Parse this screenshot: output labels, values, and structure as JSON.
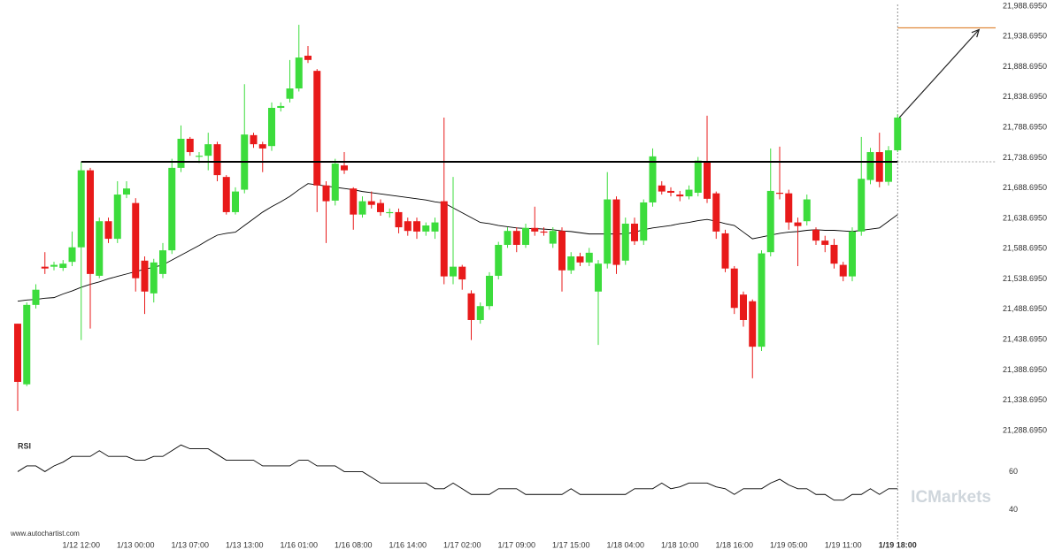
{
  "chart_data": {
    "type": "candlestick",
    "categories": [
      null,
      null,
      null,
      null,
      null,
      null,
      null,
      "1/12 12:00",
      null,
      null,
      null,
      null,
      null,
      "1/13 00:00",
      null,
      null,
      null,
      null,
      null,
      "1/13 07:00",
      null,
      null,
      null,
      null,
      null,
      "1/13 13:00",
      null,
      null,
      null,
      null,
      null,
      "1/16 01:00",
      null,
      null,
      null,
      null,
      null,
      "1/16 08:00",
      null,
      null,
      null,
      null,
      null,
      "1/16 14:00",
      null,
      null,
      null,
      null,
      null,
      "1/17 02:00",
      null,
      null,
      null,
      null,
      null,
      "1/17 09:00",
      null,
      null,
      null,
      null,
      null,
      "1/17 15:00",
      null,
      null,
      null,
      null,
      null,
      "1/18 04:00",
      null,
      null,
      null,
      null,
      null,
      "1/18 10:00",
      null,
      null,
      null,
      null,
      null,
      "1/18 16:00",
      null,
      null,
      null,
      null,
      null,
      "1/19 05:00",
      null,
      null,
      null,
      null,
      null,
      "1/19 11:00",
      null,
      null,
      null,
      null,
      null,
      "1/19 18:00"
    ],
    "open": [
      21465,
      21365,
      21496,
      21559,
      21559,
      21557,
      21567,
      21591,
      21718,
      21544,
      21634,
      21605,
      21678,
      21664,
      21569,
      21515,
      21547,
      21586,
      21722,
      21770,
      21741,
      21742,
      21761,
      21707,
      21649,
      21686,
      21776,
      21761,
      21758,
      21821,
      21836,
      21853,
      21907,
      21882,
      21693,
      21668,
      21726,
      21688,
      21645,
      21667,
      21664,
      21648,
      21649,
      21634,
      21634,
      21617,
      21617,
      21667,
      21543,
      21559,
      21515,
      21471,
      21494,
      21544,
      21595,
      21618,
      21595,
      21623,
      21617,
      21597,
      21618,
      21553,
      21576,
      21566,
      21518,
      21564,
      21670,
      21569,
      21630,
      21602,
      21665,
      21693,
      21684,
      21678,
      21675,
      21681,
      21732,
      21680,
      21614,
      21556,
      21513,
      21502,
      21427,
      21583,
      21681,
      21680,
      21632,
      21634,
      21620,
      21602,
      21595,
      21562,
      21543,
      21617,
      21702,
      21748,
      21699,
      21751
    ],
    "close": [
      21369,
      21496,
      21521,
      21556,
      21562,
      21564,
      21591,
      21718,
      21547,
      21634,
      21605,
      21678,
      21688,
      21540,
      21518,
      21566,
      21586,
      21722,
      21770,
      21748,
      21742,
      21761,
      21710,
      21649,
      21683,
      21777,
      21761,
      21754,
      21821,
      21824,
      21853,
      21904,
      21900,
      21693,
      21667,
      21729,
      21718,
      21645,
      21667,
      21661,
      21649,
      21649,
      21624,
      21618,
      21617,
      21627,
      21632,
      21543,
      21559,
      21538,
      21471,
      21494,
      21544,
      21595,
      21618,
      21595,
      21623,
      21617,
      21616,
      21618,
      21553,
      21576,
      21566,
      21582,
      21564,
      21670,
      21562,
      21630,
      21601,
      21665,
      21741,
      21683,
      21681,
      21675,
      21686,
      21734,
      21671,
      21617,
      21556,
      21491,
      21471,
      21427,
      21581,
      21684,
      21680,
      21632,
      21626,
      21670,
      21602,
      21595,
      21564,
      21543,
      21617,
      21704,
      21748,
      21699,
      21751,
      21805
    ],
    "high": [
      21465,
      21500,
      21530,
      21583,
      21567,
      21570,
      21617,
      21732,
      21722,
      21640,
      21640,
      21700,
      21700,
      21672,
      21576,
      21572,
      21598,
      21737,
      21792,
      21773,
      21748,
      21780,
      21765,
      21710,
      21690,
      21860,
      21780,
      21765,
      21830,
      21830,
      21900,
      21958,
      21923,
      21885,
      21700,
      21737,
      21748,
      21690,
      21675,
      21683,
      21670,
      21655,
      21655,
      21640,
      21640,
      21632,
      21640,
      21805,
      21707,
      21562,
      21520,
      21500,
      21550,
      21600,
      21624,
      21624,
      21630,
      21658,
      21624,
      21624,
      21624,
      21583,
      21582,
      21590,
      21570,
      21715,
      21675,
      21640,
      21640,
      21670,
      21754,
      21700,
      21690,
      21684,
      21693,
      21740,
      21808,
      21683,
      21620,
      21560,
      21518,
      21505,
      21586,
      21754,
      21757,
      21686,
      21640,
      21678,
      21624,
      21610,
      21605,
      21567,
      21624,
      21773,
      21755,
      21780,
      21758,
      21810
    ],
    "low": [
      21321,
      21362,
      21490,
      21547,
      21553,
      21552,
      21560,
      21438,
      21457,
      21540,
      21598,
      21598,
      21672,
      21518,
      21481,
      21500,
      21540,
      21580,
      21715,
      21742,
      21730,
      21718,
      21700,
      21645,
      21645,
      21680,
      21755,
      21715,
      21750,
      21815,
      21830,
      21848,
      21895,
      21649,
      21598,
      21660,
      21712,
      21620,
      21640,
      21655,
      21643,
      21640,
      21614,
      21610,
      21605,
      21610,
      21605,
      21530,
      21530,
      21521,
      21438,
      21465,
      21488,
      21538,
      21590,
      21583,
      21590,
      21610,
      21610,
      21590,
      21518,
      21547,
      21560,
      21560,
      21430,
      21556,
      21547,
      21562,
      21595,
      21595,
      21658,
      21678,
      21675,
      21667,
      21670,
      21675,
      21664,
      21605,
      21550,
      21481,
      21460,
      21375,
      21420,
      21576,
      21670,
      21620,
      21560,
      21627,
      21595,
      21583,
      21556,
      21535,
      21535,
      21610,
      21695,
      21690,
      21693,
      21748
    ],
    "up_color": "#3cdc3c",
    "down_color": "#e81a1a",
    "ylim": [
      21288.695,
      21988.695
    ],
    "yticks": [
      {
        "value": 21288.695,
        "label": "21,288.6950"
      },
      {
        "value": 21338.695,
        "label": "21,338.6950"
      },
      {
        "value": 21388.695,
        "label": "21,388.6950"
      },
      {
        "value": 21438.695,
        "label": "21,438.6950"
      },
      {
        "value": 21488.695,
        "label": "21,488.6950"
      },
      {
        "value": 21538.695,
        "label": "21,538.6950"
      },
      {
        "value": 21588.695,
        "label": "21,588.6950"
      },
      {
        "value": 21638.695,
        "label": "21,638.6950"
      },
      {
        "value": 21688.695,
        "label": "21,688.6950"
      },
      {
        "value": 21738.695,
        "label": "21,738.6950"
      },
      {
        "value": 21788.695,
        "label": "21,788.6950"
      },
      {
        "value": 21838.695,
        "label": "21,838.6950"
      },
      {
        "value": 21888.695,
        "label": "21,888.6950"
      },
      {
        "value": 21938.695,
        "label": "21,938.6950"
      },
      {
        "value": 21988.695,
        "label": "21,988.6950"
      }
    ],
    "moving_average": {
      "color": "#000000",
      "values": [
        21502,
        21504,
        21505,
        21507,
        21508,
        21514,
        21519,
        21525,
        21530,
        21534,
        21539,
        21543,
        21547,
        21551,
        21555,
        21558,
        21562,
        21570,
        21578,
        21586,
        21594,
        21603,
        21611,
        21614,
        21616,
        21627,
        21638,
        21649,
        21658,
        21666,
        21675,
        21686,
        21696,
        21694,
        21692,
        21690,
        21688,
        21686,
        21683,
        21681,
        21679,
        21677,
        21675,
        21673,
        21671,
        21669,
        21666,
        21664,
        21656,
        21648,
        21640,
        21632,
        21630,
        21627,
        21625,
        21623,
        21622,
        21622,
        21621,
        21620,
        21618,
        21617,
        21615,
        21613,
        21613,
        21613,
        21613,
        21613,
        21616,
        21620,
        21623,
        21625,
        21627,
        21630,
        21632,
        21635,
        21637,
        21634,
        21630,
        21627,
        21616,
        21605,
        21608,
        21611,
        21614,
        21616,
        21617,
        21619,
        21620,
        21619,
        21619,
        21618,
        21617,
        21619,
        21621,
        21623,
        21634,
        21645
      ]
    },
    "resistance_level": 21732,
    "target_level": 21953,
    "target_color": "#e08a3c",
    "rsi": {
      "label": "RSI",
      "ylim": [
        30,
        76
      ],
      "yticks": [
        40,
        60
      ],
      "values": [
        60,
        63,
        63,
        60,
        63,
        65,
        68,
        68,
        68,
        71,
        68,
        68,
        68,
        66,
        66,
        68,
        68,
        71,
        74,
        72,
        72,
        72,
        69,
        66,
        66,
        66,
        66,
        63,
        63,
        63,
        63,
        66,
        66,
        63,
        63,
        63,
        60,
        60,
        60,
        57,
        54,
        54,
        54,
        54,
        54,
        54,
        51,
        51,
        54,
        51,
        48,
        48,
        48,
        51,
        51,
        51,
        48,
        48,
        48,
        48,
        48,
        51,
        48,
        48,
        48,
        48,
        48,
        48,
        51,
        51,
        51,
        54,
        51,
        52,
        54,
        54,
        54,
        52,
        51,
        48,
        51,
        51,
        51,
        54,
        56,
        53,
        51,
        51,
        48,
        48,
        45,
        45,
        48,
        48,
        51,
        48,
        51,
        51
      ]
    },
    "watermark": "ICMarkets",
    "source": "www.autochartist.com"
  }
}
